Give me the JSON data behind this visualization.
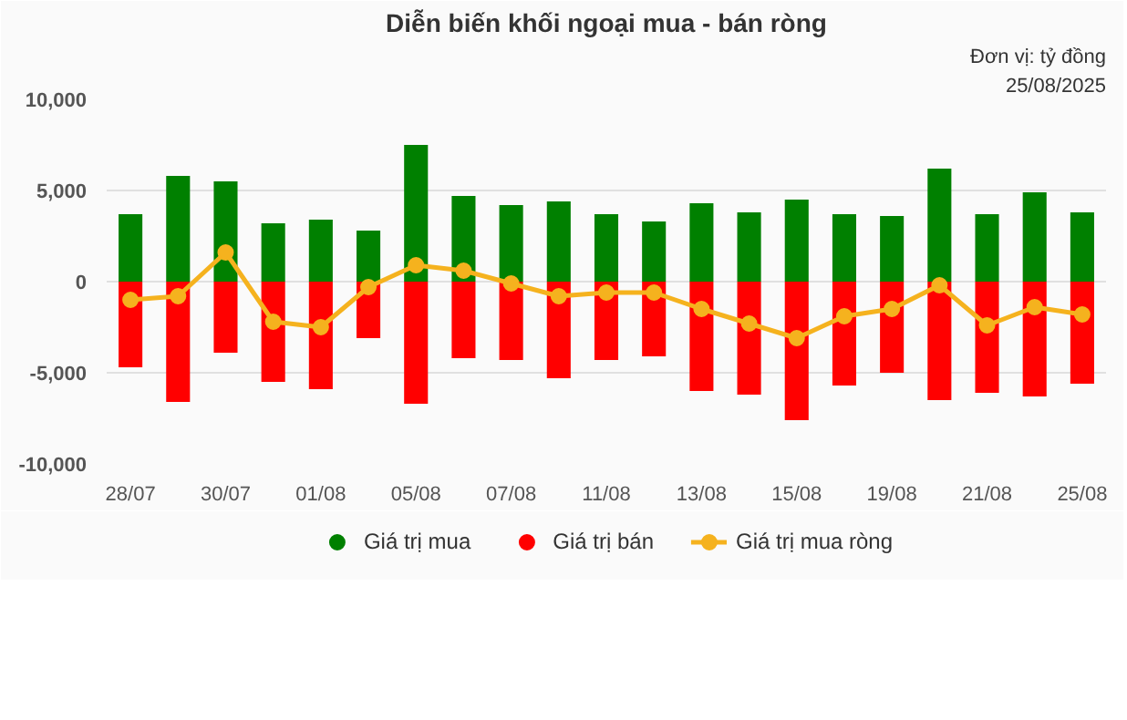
{
  "chart_data": {
    "type": "bar",
    "title": "Diễn biến khối ngoại mua - bán ròng",
    "annotations": [
      "Đơn vị: tỷ đồng",
      "25/08/2025"
    ],
    "categories": [
      "28/07",
      null,
      "30/07",
      null,
      "01/08",
      null,
      "05/08",
      null,
      "07/08",
      null,
      "11/08",
      null,
      "13/08",
      null,
      "15/08",
      null,
      "19/08",
      null,
      "21/08",
      null,
      "25/08"
    ],
    "stacked": true,
    "series": [
      {
        "name": "Giá trị mua",
        "color": "#008000",
        "values": [
          3700,
          5800,
          5500,
          3200,
          3400,
          2800,
          7500,
          4700,
          4200,
          4400,
          3700,
          3300,
          4300,
          3800,
          4500,
          3700,
          3600,
          6200,
          3700,
          4900,
          3800
        ]
      },
      {
        "name": "Giá trị bán",
        "color": "#ff0000",
        "values": [
          -4700,
          -6600,
          -3900,
          -5500,
          -5900,
          -3100,
          -6700,
          -4200,
          -4300,
          -5300,
          -4300,
          -4100,
          -6000,
          -6200,
          -7600,
          -5700,
          -5000,
          -6500,
          -6100,
          -6300,
          -5600
        ]
      },
      {
        "name": "Giá trị mua ròng",
        "type": "line",
        "color": "#f5b21e",
        "values": [
          -1000,
          -800,
          1600,
          -2200,
          -2500,
          -300,
          900,
          600,
          -100,
          -800,
          -600,
          -600,
          -1500,
          -2300,
          -3100,
          -1900,
          -1500,
          -200,
          -2400,
          -1400,
          -1800
        ]
      }
    ],
    "ylim": [
      -10000,
      10000
    ],
    "yticks": [
      {
        "value": -10000,
        "label": "-10,000"
      },
      {
        "value": -5000,
        "label": "-5,000"
      },
      0,
      {
        "value": 5000,
        "label": "5,000"
      },
      {
        "value": 10000,
        "label": "10,000"
      }
    ],
    "grid": "y",
    "legend": "bottom",
    "marker": "circle",
    "line_style": "solid"
  }
}
